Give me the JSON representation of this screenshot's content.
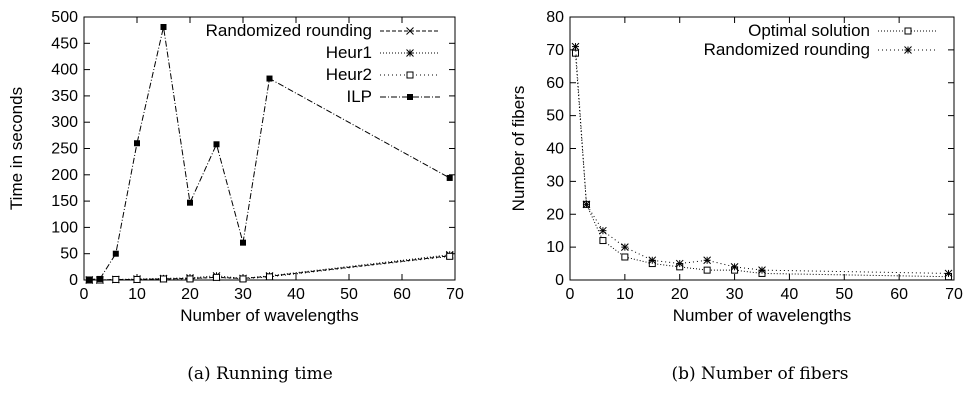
{
  "chart_data": [
    {
      "type": "line",
      "caption": "(a) Running time",
      "xlabel": "Number of wavelengths",
      "ylabel": "Time in seconds",
      "xlim": [
        0,
        70
      ],
      "ylim": [
        0,
        500
      ],
      "xticks": [
        0,
        10,
        20,
        30,
        40,
        50,
        60,
        70
      ],
      "yticks": [
        0,
        50,
        100,
        150,
        200,
        250,
        300,
        350,
        400,
        450,
        500
      ],
      "legend_position": "top-right",
      "series": [
        {
          "name": "Randomized rounding",
          "marker": "x",
          "dash": "4,2",
          "x": [
            1,
            3,
            6,
            10,
            15,
            20,
            25,
            30,
            35,
            69
          ],
          "y": [
            0,
            0,
            1,
            1,
            2,
            3,
            5,
            3,
            7,
            46
          ]
        },
        {
          "name": "Heur1",
          "marker": "star",
          "dash": "1,2",
          "x": [
            1,
            3,
            6,
            10,
            15,
            20,
            25,
            30,
            35,
            69
          ],
          "y": [
            0,
            0,
            1,
            2,
            3,
            4,
            8,
            3,
            8,
            48
          ]
        },
        {
          "name": "Heur2",
          "marker": "square-open",
          "dash": "1,3",
          "x": [
            1,
            3,
            6,
            10,
            15,
            20,
            25,
            30,
            35,
            69
          ],
          "y": [
            0,
            0,
            1,
            1,
            2,
            2,
            5,
            2,
            6,
            45
          ]
        },
        {
          "name": "ILP",
          "marker": "square-filled",
          "dash": "6,2,1,2",
          "x": [
            1,
            3,
            6,
            10,
            15,
            20,
            25,
            30,
            35,
            69
          ],
          "y": [
            1,
            2,
            50,
            260,
            481,
            147,
            258,
            71,
            383,
            194
          ]
        }
      ]
    },
    {
      "type": "line",
      "caption": "(b) Number of fibers",
      "xlabel": "Number of wavelengths",
      "ylabel": "Number of fibers",
      "xlim": [
        0,
        70
      ],
      "ylim": [
        0,
        80
      ],
      "xticks": [
        0,
        10,
        20,
        30,
        40,
        50,
        60,
        70
      ],
      "yticks": [
        0,
        10,
        20,
        30,
        40,
        50,
        60,
        70,
        80
      ],
      "legend_position": "top-right",
      "series": [
        {
          "name": "Optimal solution",
          "marker": "square-open",
          "dash": "1,2",
          "x": [
            1,
            3,
            6,
            10,
            15,
            20,
            25,
            30,
            35,
            69
          ],
          "y": [
            69,
            23,
            12,
            7,
            5,
            4,
            3,
            3,
            2,
            1
          ]
        },
        {
          "name": "Randomized rounding",
          "marker": "star",
          "dash": "1,3",
          "x": [
            1,
            3,
            6,
            10,
            15,
            20,
            25,
            30,
            35,
            69
          ],
          "y": [
            71,
            23,
            15,
            10,
            6,
            5,
            6,
            4,
            3,
            2
          ]
        }
      ]
    }
  ]
}
